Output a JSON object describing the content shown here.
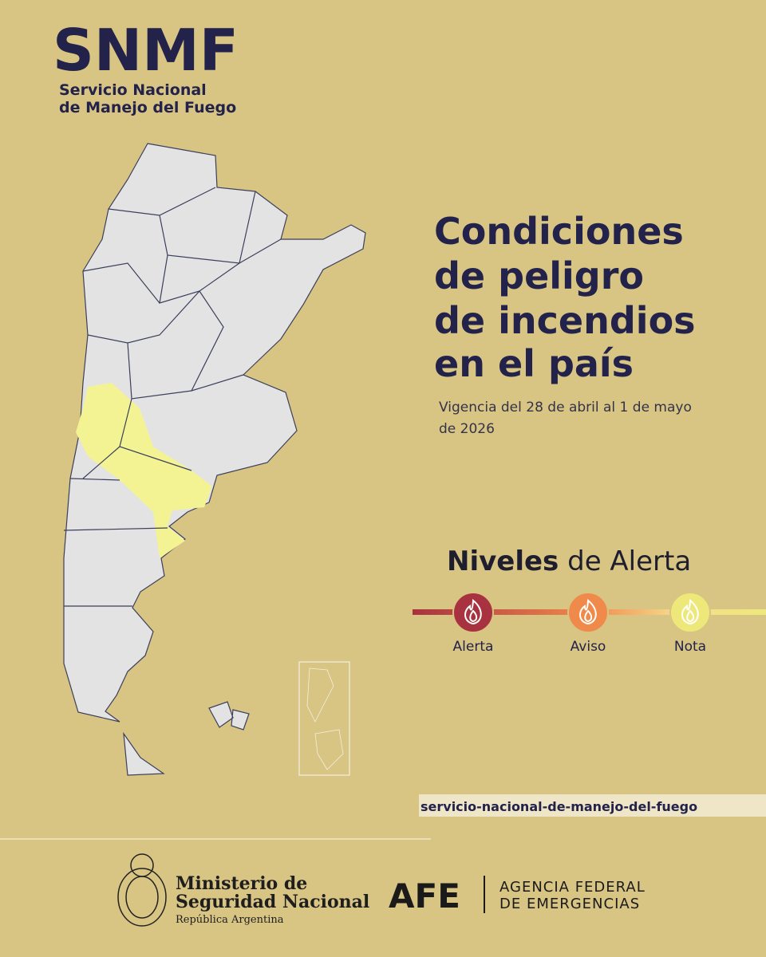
{
  "header": {
    "logo": "SNMF",
    "subtitle": [
      "Servicio Nacional",
      "de Manejo del Fuego"
    ]
  },
  "title": [
    "Condiciones",
    "de peligro",
    "de incendios",
    "en el país"
  ],
  "validity": [
    "Vigencia del 28 de abril al 1 de mayo",
    "de 2026"
  ],
  "legend": {
    "title_bold": "Niveles",
    "title_rest": "de Alerta",
    "levels": [
      {
        "label": "Alerta",
        "color": "#a8323f"
      },
      {
        "label": "Aviso",
        "color": "#f08a4b"
      },
      {
        "label": "Nota",
        "color": "#eee87a"
      }
    ]
  },
  "url": "servicio-nacional-de-manejo-del-fuego",
  "footer": {
    "ministry": [
      "Ministerio de",
      "Seguridad Nacional"
    ],
    "country": "República Argentina",
    "agency_short": "AFE",
    "agency": [
      "AGENCIA FEDERAL",
      "DE EMERGENCIAS"
    ]
  }
}
